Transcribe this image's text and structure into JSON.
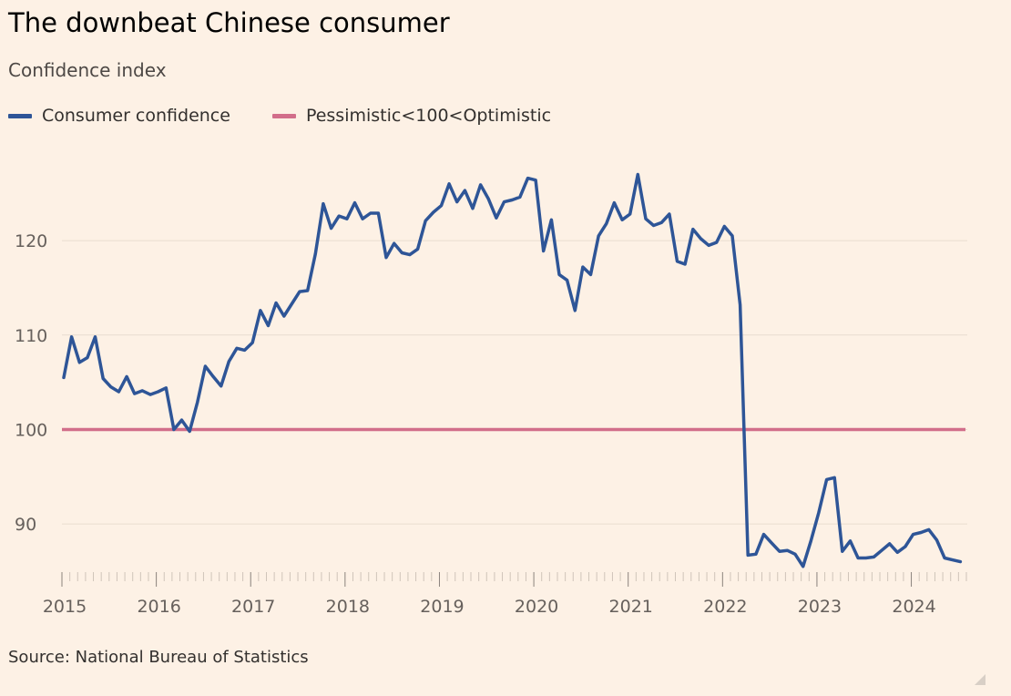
{
  "header": {
    "title": "The downbeat Chinese consumer",
    "subtitle": "Confidence index"
  },
  "legend": [
    {
      "label": "Consumer confidence",
      "color": "#2e5597"
    },
    {
      "label": "Pessimistic<100<Optimistic",
      "color": "#d26e8a"
    }
  ],
  "footer": {
    "source": "Source: National Bureau of Statistics"
  },
  "chart_data": {
    "type": "line",
    "title": "The downbeat Chinese consumer",
    "ylabel": "Confidence index",
    "xlabel": "",
    "ylim": [
      85,
      131
    ],
    "yticks": [
      90,
      100,
      110,
      120
    ],
    "xticks": [
      "2015",
      "2016",
      "2017",
      "2018",
      "2019",
      "2020",
      "2021",
      "2022",
      "2023",
      "2024"
    ],
    "x_start": "2015-01",
    "x_end": "2024-06",
    "grid": true,
    "legend_position": "top-left",
    "series": [
      {
        "name": "Consumer confidence",
        "color": "#2e5597",
        "values": [
          105.5,
          109.8,
          107.1,
          107.6,
          109.8,
          105.4,
          104.5,
          104.0,
          105.6,
          103.8,
          104.1,
          103.7,
          104.0,
          104.4,
          100.0,
          101.0,
          99.8,
          102.9,
          106.7,
          105.6,
          104.6,
          107.2,
          108.6,
          108.4,
          109.2,
          112.6,
          111.0,
          113.4,
          112.0,
          113.3,
          114.6,
          114.7,
          118.6,
          123.9,
          121.3,
          122.6,
          122.3,
          124.0,
          122.3,
          122.9,
          122.9,
          118.2,
          119.7,
          118.7,
          118.5,
          119.1,
          122.1,
          123.0,
          123.7,
          126.0,
          124.1,
          125.3,
          123.4,
          125.9,
          124.4,
          122.4,
          124.1,
          124.3,
          124.6,
          126.6,
          126.4,
          118.9,
          122.2,
          116.4,
          115.8,
          112.6,
          117.2,
          116.4,
          120.5,
          121.8,
          124.0,
          122.2,
          122.8,
          127.0,
          122.3,
          121.6,
          121.9,
          122.8,
          117.8,
          117.5,
          121.2,
          120.2,
          119.5,
          119.8,
          121.5,
          120.5,
          113.2,
          86.7,
          86.8,
          88.9,
          88.0,
          87.1,
          87.2,
          86.8,
          85.5,
          88.2,
          91.2,
          94.7,
          94.9,
          87.1,
          88.2,
          86.4,
          86.4,
          86.5,
          87.2,
          87.9,
          87.0,
          87.6,
          88.9,
          89.1,
          89.4,
          88.3,
          86.4,
          86.2,
          86.0
        ]
      },
      {
        "name": "Pessimistic<100<Optimistic",
        "color": "#d26e8a",
        "values": [
          100,
          100
        ]
      }
    ]
  }
}
